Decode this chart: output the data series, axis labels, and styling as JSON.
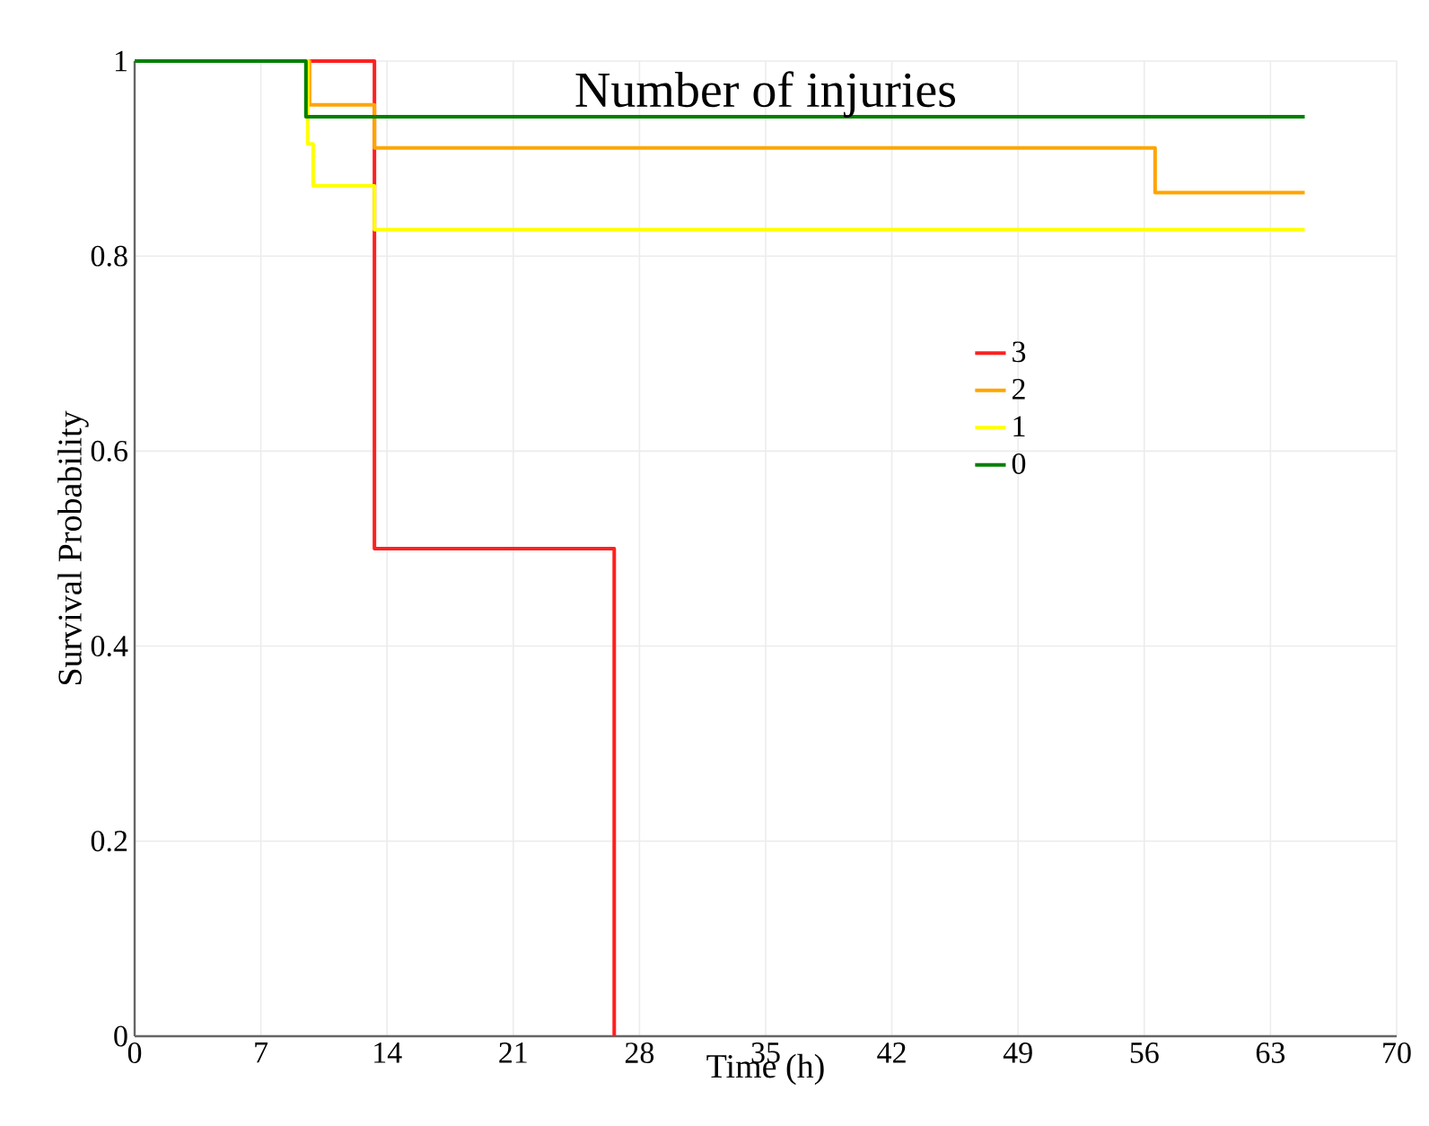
{
  "chart_data": {
    "type": "step",
    "title": "Number of injuries",
    "xlabel": "Time (h)",
    "ylabel": "Survival Probability",
    "xlim": [
      0,
      70
    ],
    "ylim": [
      0,
      1
    ],
    "xticks": [
      0,
      7,
      14,
      21,
      28,
      35,
      42,
      49,
      56,
      63,
      70
    ],
    "yticks": [
      0,
      0.2,
      0.4,
      0.6,
      0.8,
      1
    ],
    "grid": true,
    "legend": "right",
    "line_style": "solid",
    "marker": "none",
    "series": [
      {
        "name": "3",
        "color": "#ff2020",
        "x": [
          0,
          13.3,
          26.6,
          26.6
        ],
        "values": [
          1,
          0.5,
          0,
          0
        ]
      },
      {
        "name": "2",
        "color": "#ffa500",
        "x": [
          0,
          9.7,
          13.3,
          56.6,
          64.9
        ],
        "values": [
          1,
          0.955,
          0.911,
          0.865,
          0.865
        ]
      },
      {
        "name": "1",
        "color": "#ffff00",
        "x": [
          0,
          9.6,
          9.9,
          13.3,
          64.9
        ],
        "values": [
          1,
          0.915,
          0.872,
          0.827,
          0.827
        ]
      },
      {
        "name": "0",
        "color": "#008000",
        "x": [
          0,
          9.5,
          64.9
        ],
        "values": [
          1,
          0.943,
          0.943
        ]
      }
    ]
  }
}
